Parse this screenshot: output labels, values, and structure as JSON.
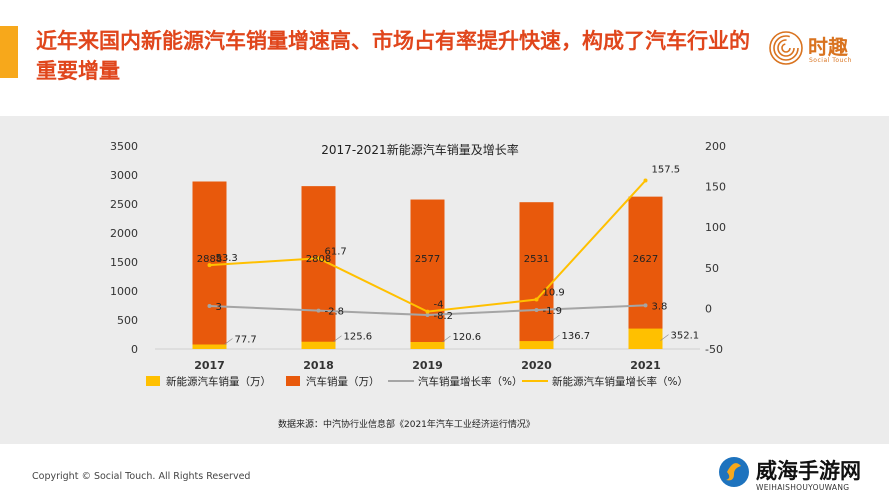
{
  "slide": {
    "title": "近年来国内新能源汽车销量增速高、市场占有率提升快速，构成了汽车行业的重要增量",
    "copyright": "Copyright © Social Touch. All Rights Reserved",
    "source_note": "数据来源：中汽协行业信息部《2021年汽车工业经济运行情况》"
  },
  "logo": {
    "name": "时趣",
    "sub": "Social Touch"
  },
  "watermark": {
    "name": "威海手游网",
    "url": "WEIHAISHOUYOUWANG"
  },
  "colors": {
    "accent": "#f7a81b",
    "title": "#e0461c",
    "nev_sales": "#ffc000",
    "auto_sales": "#e8590c",
    "auto_growth": "#a5a5a5",
    "nev_growth": "#ffc000",
    "panel_bg": "#ececec"
  },
  "chart_data": {
    "type": "bar",
    "title": "2017-2021新能源汽车销量及增长率",
    "categories": [
      "2017",
      "2018",
      "2019",
      "2020",
      "2021"
    ],
    "y_left": {
      "ylim": [
        0,
        3500
      ],
      "ticks": [
        0,
        500,
        1000,
        1500,
        2000,
        2500,
        3000,
        3500
      ]
    },
    "y_right": {
      "ylim": [
        -50,
        200
      ],
      "ticks": [
        -50,
        0,
        50,
        100,
        150,
        200
      ]
    },
    "grid": false,
    "legend": "bottom",
    "series": [
      {
        "name": "新能源汽车销量（万）",
        "kind": "bar",
        "axis": "left",
        "values": [
          77.7,
          125.6,
          120.6,
          136.7,
          352.1
        ],
        "labels": [
          "77.7",
          "125.6",
          "120.6",
          "136.7",
          "352.1"
        ]
      },
      {
        "name": "汽车销量（万）",
        "kind": "bar",
        "axis": "left",
        "values": [
          2888,
          2808,
          2577,
          2531,
          2627
        ],
        "labels": [
          "2888",
          "2808",
          "2577",
          "2531",
          "2627"
        ]
      },
      {
        "name": "汽车销量增长率（%）",
        "kind": "line",
        "axis": "right",
        "values": [
          3,
          -2.8,
          -8.2,
          -1.9,
          3.8
        ],
        "labels": [
          "3",
          "-2.8",
          "-8.2",
          "-1.9",
          "3.8"
        ]
      },
      {
        "name": "新能源汽车销量增长率（%）",
        "kind": "line",
        "axis": "right",
        "values": [
          53.3,
          61.7,
          -4,
          10.9,
          157.5
        ],
        "labels": [
          "53.3",
          "61.7",
          "-4",
          "10.9",
          "157.5"
        ]
      }
    ]
  }
}
